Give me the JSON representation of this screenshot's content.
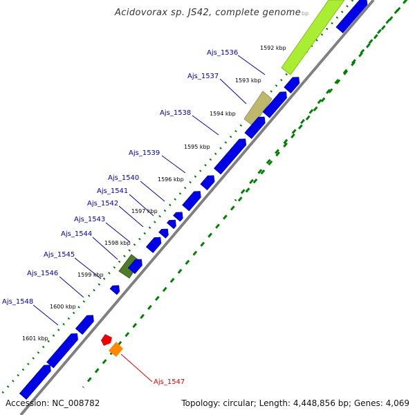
{
  "title": "Acidovorax sp. JS42, complete genome",
  "footer": {
    "accession": "Accession: NC_008782",
    "topology": "Topology: circular; Length: 4,448,856 bp; Genes: 4,069"
  },
  "colors": {
    "cds_forward": "#0000e6",
    "cds_reverse": "#0000e6",
    "backbone": "#808080",
    "ticks": "#008000",
    "gene_label": "#0000b0",
    "highlight_label": "#e00000",
    "gc_lime": "#aaee33",
    "gc_khaki": "#bdb86a",
    "gc_olive": "#4e7c28",
    "red_feature": "#ee0000",
    "orange_feature": "#ff8800"
  },
  "ruler": [
    {
      "label": "1592 kbp"
    },
    {
      "label": "1593 kbp"
    },
    {
      "label": "1594 kbp"
    },
    {
      "label": "1595 kbp"
    },
    {
      "label": "1596 kbp"
    },
    {
      "label": "1597 kbp"
    },
    {
      "label": "1598 kbp"
    },
    {
      "label": "1599 kbp"
    },
    {
      "label": "1600 kbp"
    },
    {
      "label": "1601 kbp"
    }
  ],
  "ruler_partial": "bp",
  "genes": [
    {
      "name": "Ajs_1536"
    },
    {
      "name": "Ajs_1537"
    },
    {
      "name": "Ajs_1538"
    },
    {
      "name": "Ajs_1539"
    },
    {
      "name": "Ajs_1540"
    },
    {
      "name": "Ajs_1541"
    },
    {
      "name": "Ajs_1542"
    },
    {
      "name": "Ajs_1543"
    },
    {
      "name": "Ajs_1544"
    },
    {
      "name": "Ajs_1545"
    },
    {
      "name": "Ajs_1546"
    },
    {
      "name": "Ajs_1548"
    }
  ],
  "highlight_gene": {
    "name": "Ajs_1547"
  }
}
